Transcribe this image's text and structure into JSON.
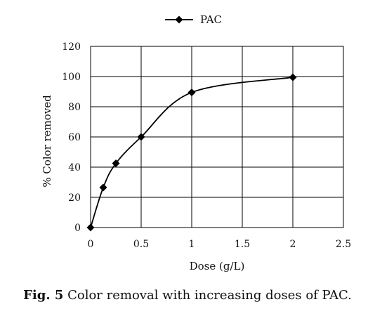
{
  "chart_data": {
    "type": "line",
    "legend": {
      "position": "top-center",
      "entries": [
        "PAC"
      ]
    },
    "series": [
      {
        "name": "PAC",
        "x": [
          0,
          0.125,
          0.25,
          0.5,
          1,
          2
        ],
        "y": [
          0,
          26.5,
          42.5,
          60,
          89.5,
          99.5
        ],
        "color": "#000000",
        "marker": "diamond"
      }
    ],
    "xlabel": "Dose (g/L)",
    "ylabel": "% Color removed",
    "xlim": [
      0,
      2.5
    ],
    "ylim": [
      0,
      120
    ],
    "xticks": [
      "0",
      "0.5",
      "1",
      "1.5",
      "2",
      "2.5"
    ],
    "yticks": [
      "0",
      "20",
      "40",
      "60",
      "80",
      "100",
      "120"
    ],
    "grid": true
  },
  "caption": {
    "label": "Fig. 5",
    "text": " Color removal with increasing doses of PAC."
  }
}
